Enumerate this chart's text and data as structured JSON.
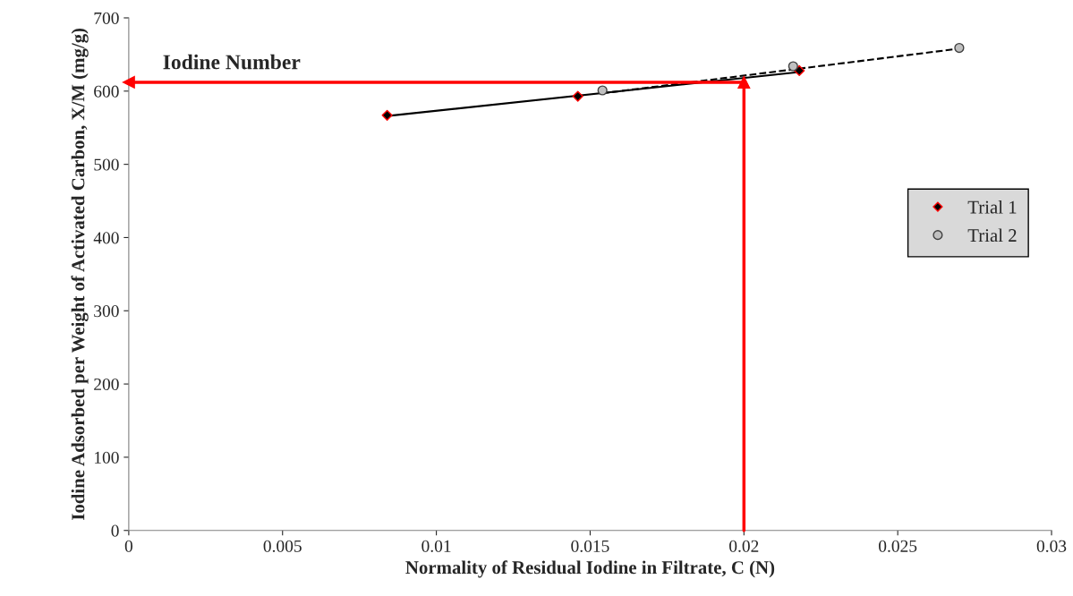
{
  "chart_data": {
    "type": "scatter",
    "xlabel": "Normality of Residual Iodine in Filtrate, C (N)",
    "ylabel": "Iodine Adsorbed per Weight of Activated Carbon, X/M (mg/g)",
    "xlim": [
      0,
      0.03
    ],
    "xticks": [
      0,
      0.005,
      0.01,
      0.015,
      0.02,
      0.025,
      0.03
    ],
    "ylim": [
      0,
      700
    ],
    "yticks": [
      0,
      100,
      200,
      300,
      400,
      500,
      600,
      700
    ],
    "grid": false,
    "legend": "right",
    "series": [
      {
        "name": "Trial 1",
        "marker": "diamond",
        "color": "#000000",
        "x": [
          0.0084,
          0.0146,
          0.0218
        ],
        "values": [
          567,
          593,
          628
        ]
      },
      {
        "name": "Trial 2",
        "marker": "circle",
        "color": "#c0c0c0",
        "x": [
          0.0154,
          0.0216,
          0.027
        ],
        "values": [
          601,
          634,
          659
        ]
      },
      {
        "type": "line",
        "marker": "none",
        "line_style": "solid",
        "color": "#000000",
        "x": [
          0.0084,
          0.0218
        ],
        "values": [
          566,
          626
        ]
      },
      {
        "type": "line",
        "marker": "none",
        "line_style": "dashed",
        "color": "#000000",
        "x": [
          0.0154,
          0.027
        ],
        "values": [
          597,
          658
        ]
      }
    ],
    "ref_lines": [
      {
        "axis": "x",
        "value": 0.02,
        "color": "#ff0000"
      },
      {
        "axis": "y",
        "value": 612,
        "label": "Iodine Number",
        "color": "#ff0000"
      }
    ]
  }
}
